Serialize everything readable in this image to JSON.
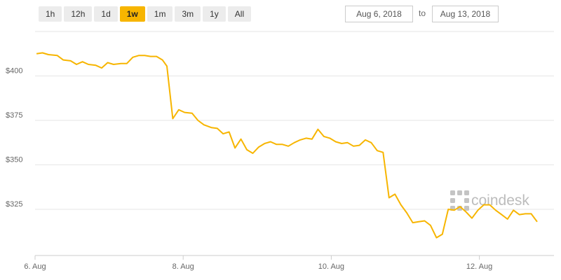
{
  "range_selector": {
    "buttons": [
      {
        "id": "1h",
        "label": "1h",
        "active": false
      },
      {
        "id": "12h",
        "label": "12h",
        "active": false
      },
      {
        "id": "1d",
        "label": "1d",
        "active": false
      },
      {
        "id": "1w",
        "label": "1w",
        "active": true
      },
      {
        "id": "1m",
        "label": "1m",
        "active": false
      },
      {
        "id": "3m",
        "label": "3m",
        "active": false
      },
      {
        "id": "1y",
        "label": "1y",
        "active": false
      },
      {
        "id": "all",
        "label": "All",
        "active": false
      }
    ]
  },
  "date_range": {
    "from": "Aug 6, 2018",
    "to_label": "to",
    "to": "Aug 13, 2018"
  },
  "watermark": {
    "brand": "coindesk"
  },
  "colors": {
    "line": "#f7b500",
    "grid": "#e6e6e6",
    "active_button": "#f7b500"
  },
  "chart_data": {
    "type": "line",
    "title": "",
    "xlabel": "",
    "ylabel": "",
    "x_ticks": [
      {
        "label": "6. Aug",
        "day": 6.0
      },
      {
        "label": "8. Aug",
        "day": 8.0
      },
      {
        "label": "10. Aug",
        "day": 10.0
      },
      {
        "label": "12. Aug",
        "day": 12.0
      }
    ],
    "y_ticks": [
      {
        "label": "$400",
        "value": 400
      },
      {
        "label": "$375",
        "value": 375
      },
      {
        "label": "$350",
        "value": 350
      },
      {
        "label": "$325",
        "value": 325
      }
    ],
    "xlim": [
      6.0,
      13.0
    ],
    "ylim": [
      304,
      418
    ],
    "grid": "horizontal",
    "series": [
      {
        "name": "",
        "points": [
          [
            6.02,
            412.5
          ],
          [
            6.1,
            413.0
          ],
          [
            6.18,
            412.0
          ],
          [
            6.3,
            411.5
          ],
          [
            6.38,
            409.0
          ],
          [
            6.48,
            408.5
          ],
          [
            6.56,
            406.5
          ],
          [
            6.64,
            408.0
          ],
          [
            6.72,
            406.5
          ],
          [
            6.82,
            406.0
          ],
          [
            6.9,
            404.5
          ],
          [
            6.98,
            407.5
          ],
          [
            7.06,
            406.5
          ],
          [
            7.16,
            407.0
          ],
          [
            7.24,
            407.0
          ],
          [
            7.32,
            410.5
          ],
          [
            7.4,
            411.5
          ],
          [
            7.48,
            411.5
          ],
          [
            7.56,
            411.0
          ],
          [
            7.64,
            411.0
          ],
          [
            7.72,
            409.0
          ],
          [
            7.78,
            405.5
          ],
          [
            7.86,
            376.0
          ],
          [
            7.94,
            381.0
          ],
          [
            8.02,
            379.5
          ],
          [
            8.12,
            379.0
          ],
          [
            8.2,
            375.0
          ],
          [
            8.28,
            372.5
          ],
          [
            8.38,
            371.0
          ],
          [
            8.46,
            370.5
          ],
          [
            8.54,
            367.5
          ],
          [
            8.62,
            368.5
          ],
          [
            8.7,
            359.5
          ],
          [
            8.78,
            364.5
          ],
          [
            8.86,
            358.5
          ],
          [
            8.94,
            356.5
          ],
          [
            9.02,
            360.0
          ],
          [
            9.1,
            362.0
          ],
          [
            9.18,
            363.0
          ],
          [
            9.26,
            361.5
          ],
          [
            9.34,
            361.5
          ],
          [
            9.42,
            360.5
          ],
          [
            9.5,
            362.5
          ],
          [
            9.58,
            364.0
          ],
          [
            9.66,
            365.0
          ],
          [
            9.74,
            364.5
          ],
          [
            9.82,
            370.0
          ],
          [
            9.9,
            366.0
          ],
          [
            9.98,
            365.0
          ],
          [
            10.06,
            363.0
          ],
          [
            10.14,
            362.0
          ],
          [
            10.22,
            362.5
          ],
          [
            10.3,
            360.5
          ],
          [
            10.38,
            361.0
          ],
          [
            10.46,
            364.0
          ],
          [
            10.54,
            362.5
          ],
          [
            10.62,
            358.0
          ],
          [
            10.7,
            357.0
          ],
          [
            10.78,
            331.5
          ],
          [
            10.86,
            333.5
          ],
          [
            10.94,
            327.5
          ],
          [
            11.02,
            323.0
          ],
          [
            11.1,
            317.5
          ],
          [
            11.18,
            318.0
          ],
          [
            11.26,
            318.5
          ],
          [
            11.34,
            316.0
          ],
          [
            11.42,
            309.0
          ],
          [
            11.5,
            311.0
          ],
          [
            11.58,
            325.0
          ],
          [
            11.66,
            324.5
          ],
          [
            11.74,
            326.5
          ],
          [
            11.82,
            323.5
          ],
          [
            11.9,
            320.0
          ],
          [
            11.98,
            324.5
          ],
          [
            12.06,
            327.5
          ],
          [
            12.14,
            327.5
          ],
          [
            12.22,
            324.5
          ],
          [
            12.3,
            322.0
          ],
          [
            12.38,
            319.5
          ],
          [
            12.46,
            324.5
          ],
          [
            12.54,
            322.0
          ],
          [
            12.62,
            322.5
          ],
          [
            12.7,
            322.5
          ],
          [
            12.78,
            318.0
          ]
        ]
      }
    ]
  }
}
